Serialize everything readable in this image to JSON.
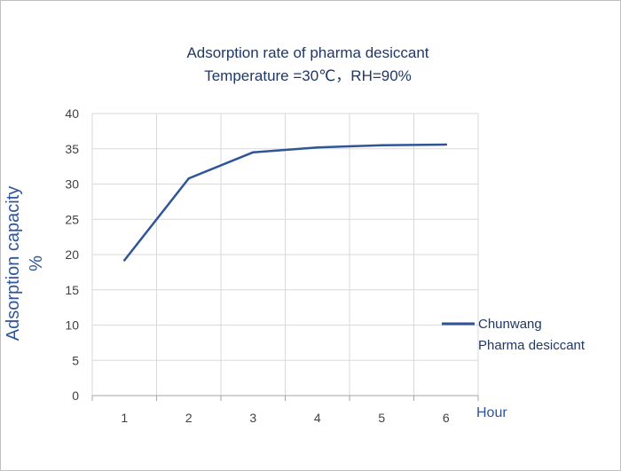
{
  "chart_data": {
    "type": "line",
    "title": "Adsorption rate of pharma desiccant",
    "subtitle": "Temperature =30℃，RH=90%",
    "xlabel": "Hour",
    "ylabel_line1": "Adsorption capacity",
    "ylabel_line2": "%",
    "x": [
      "1",
      "2",
      "3",
      "4",
      "5",
      "6"
    ],
    "yticks": [
      "0",
      "5",
      "10",
      "15",
      "20",
      "25",
      "30",
      "35",
      "40"
    ],
    "ylim": [
      0,
      40
    ],
    "grid": true,
    "legend_position": "right",
    "series": [
      {
        "name_line1": "Chunwang",
        "name_line2": "Pharma desiccant",
        "values": [
          19.2,
          30.8,
          34.5,
          35.2,
          35.5,
          35.6
        ],
        "color": "#2f5597"
      }
    ]
  }
}
